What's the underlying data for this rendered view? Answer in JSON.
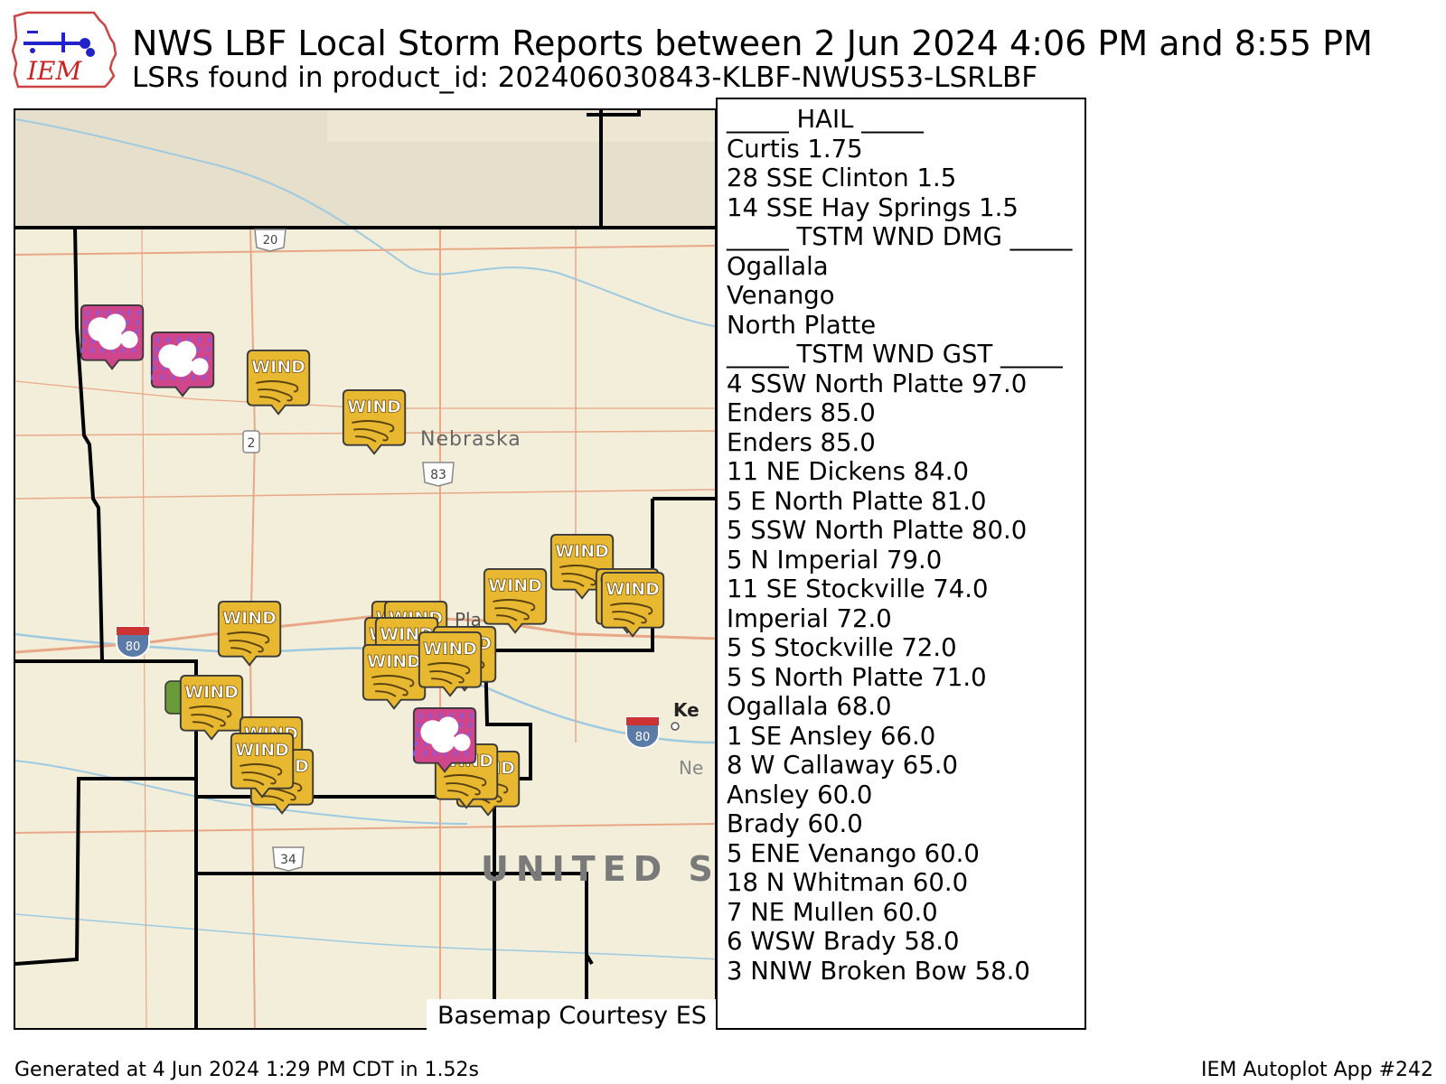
{
  "header": {
    "logo_text": "IEM",
    "title": "NWS LBF Local Storm Reports between 2 Jun 2024 4:06 PM and 8:55 PM",
    "subtitle": "LSRs found in product_id: 202406030843-KLBF-NWUS53-LSRLBF"
  },
  "map": {
    "basemap_credit": "Basemap Courtesy ES",
    "labels": {
      "state": "Nebraska",
      "country": "UNITED STA",
      "city_kearney": "Ke",
      "city_ne": "Ne",
      "city_platte": "Pla"
    },
    "road_shields": {
      "us20": "20",
      "ne2": "2",
      "us83": "83",
      "i80_west": "80",
      "i80_east": "80",
      "us34": "34"
    },
    "marker_labels": {
      "wind": "WIND"
    },
    "colors": {
      "wind_marker": "#e8b830",
      "hail_marker": "#d0468c",
      "county_border": "#000000",
      "road_color": "#e8a887",
      "water_color": "#9ecae1"
    }
  },
  "legend": {
    "lines": [
      "_____ HAIL _____",
      "Curtis 1.75",
      "28 SSE Clinton 1.5",
      "14 SSE Hay Springs 1.5",
      "_____ TSTM WND DMG _____",
      "Ogallala",
      "Venango",
      "North Platte",
      "_____ TSTM WND GST _____",
      "4 SSW North Platte 97.0",
      "Enders 85.0",
      "Enders 85.0",
      "11 NE Dickens 84.0",
      "5 E North Platte 81.0",
      "5 SSW North Platte 80.0",
      "5 N Imperial 79.0",
      "11 SE Stockville 74.0",
      "Imperial 72.0",
      "5 S Stockville 72.0",
      "5 S North Platte 71.0",
      "Ogallala 68.0",
      "1 SE Ansley 66.0",
      "8 W Callaway 65.0",
      "Ansley 60.0",
      "Brady 60.0",
      "5 ENE Venango 60.0",
      "18 N Whitman 60.0",
      "7 NE Mullen 60.0",
      "6 WSW Brady 58.0",
      "3 NNW Broken Bow 58.0"
    ]
  },
  "footer": {
    "generated": "Generated at 4 Jun 2024 1:29 PM CDT in 1.52s",
    "app": "IEM Autoplot App #242"
  }
}
